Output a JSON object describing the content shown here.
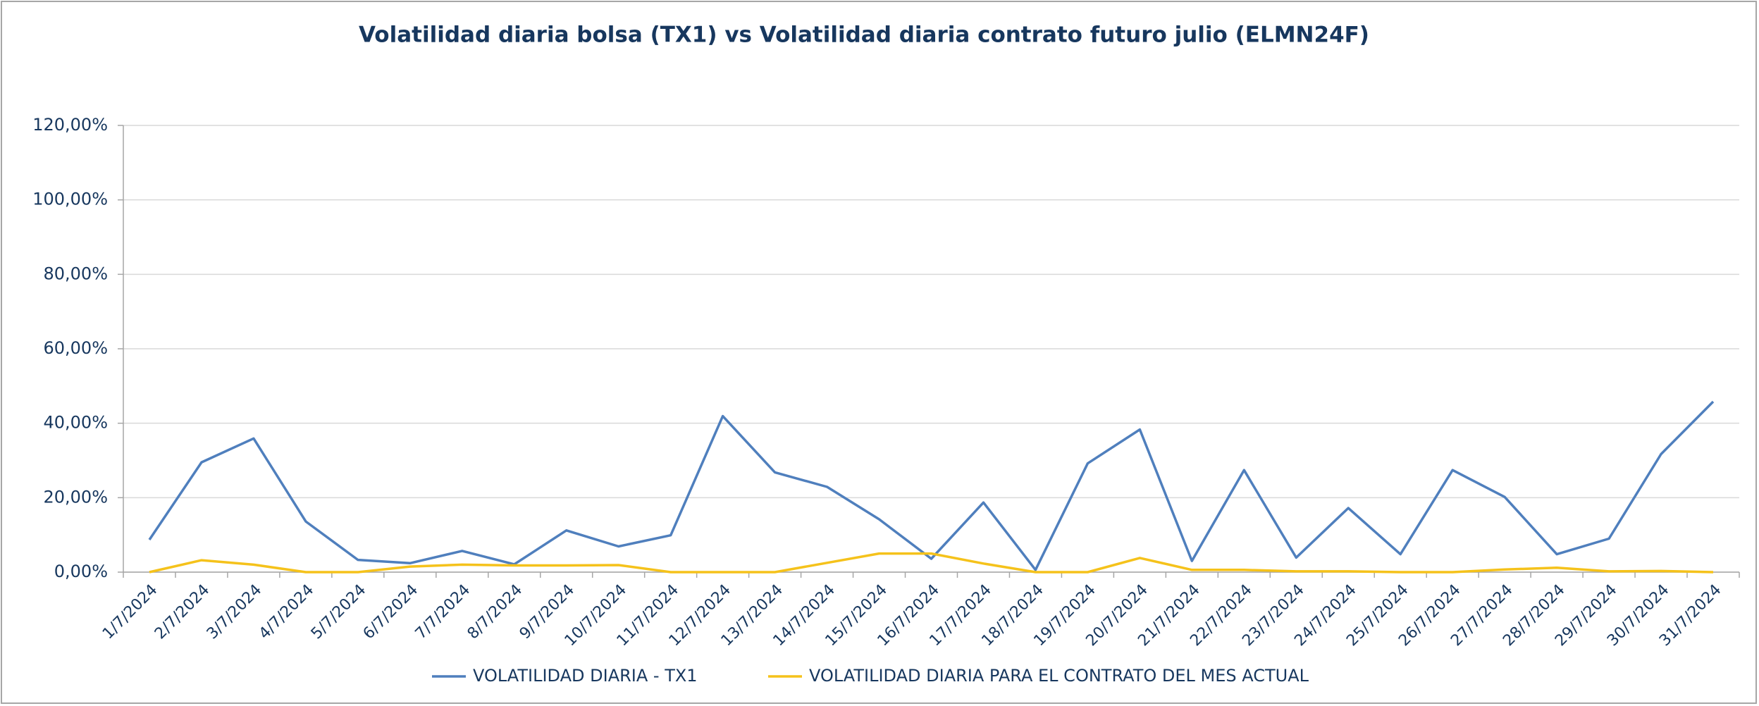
{
  "chart_data": {
    "type": "line",
    "title": "Volatilidad diaria bolsa (TX1) vs Volatilidad diaria contrato futuro julio (ELMN24F)",
    "categories": [
      "1/7/2024",
      "2/7/2024",
      "3/7/2024",
      "4/7/2024",
      "5/7/2024",
      "6/7/2024",
      "7/7/2024",
      "8/7/2024",
      "9/7/2024",
      "10/7/2024",
      "11/7/2024",
      "12/7/2024",
      "13/7/2024",
      "14/7/2024",
      "15/7/2024",
      "16/7/2024",
      "17/7/2024",
      "18/7/2024",
      "19/7/2024",
      "20/7/2024",
      "21/7/2024",
      "22/7/2024",
      "23/7/2024",
      "24/7/2024",
      "25/7/2024",
      "26/7/2024",
      "27/7/2024",
      "28/7/2024",
      "29/7/2024",
      "30/7/2024",
      "31/7/2024"
    ],
    "series": [
      {
        "name": "VOLATILIDAD DIARIA - TX1",
        "color": "#4f7fbd",
        "values": [
          8.7,
          29.5,
          35.9,
          13.6,
          3.3,
          2.4,
          5.7,
          2.1,
          11.2,
          6.9,
          9.9,
          41.9,
          26.8,
          22.9,
          14.2,
          3.6,
          18.7,
          0.6,
          29.2,
          38.3,
          3.0,
          27.4,
          3.9,
          17.2,
          4.8,
          27.4,
          20.2,
          4.8,
          9.0,
          31.7,
          45.8
        ]
      },
      {
        "name": "VOLATILIDAD DIARIA PARA EL CONTRATO DEL MES ACTUAL",
        "color": "#f5c21b",
        "values": [
          0,
          3.2,
          2.0,
          0,
          0,
          1.5,
          2.0,
          1.8,
          1.8,
          1.9,
          0,
          0,
          0,
          2.5,
          5.0,
          5.0,
          2.3,
          0,
          0,
          3.8,
          0.6,
          0.6,
          0.2,
          0.2,
          0,
          0,
          0.7,
          1.2,
          0.2,
          0.3,
          0
        ]
      }
    ],
    "ylim": [
      0,
      120
    ],
    "yticks": [
      {
        "value": 0,
        "label": "0,00%"
      },
      {
        "value": 20,
        "label": "20,00%"
      },
      {
        "value": 40,
        "label": "40,00%"
      },
      {
        "value": 60,
        "label": "60,00%"
      },
      {
        "value": 80,
        "label": "80,00%"
      },
      {
        "value": 100,
        "label": "100,00%"
      },
      {
        "value": 120,
        "label": "120,00%"
      }
    ],
    "grid": true
  }
}
